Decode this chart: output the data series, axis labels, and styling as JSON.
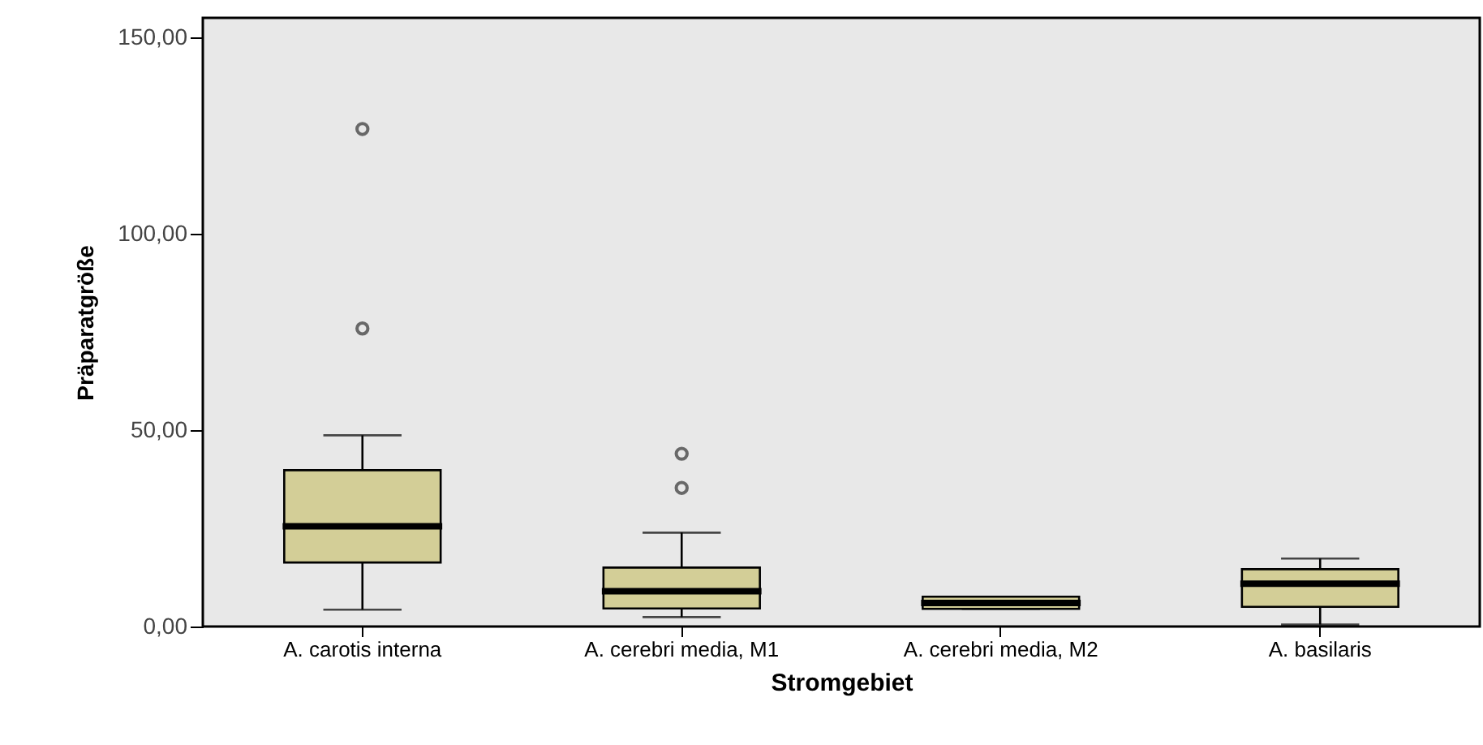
{
  "chart_data": {
    "type": "box",
    "xlabel": "Stromgebiet",
    "ylabel": "Präparatgröße",
    "categories": [
      "A. carotis interna",
      "A. cerebri media, M1",
      "A. cerebri media, M2",
      "A. basilaris"
    ],
    "ylim": [
      0,
      155
    ],
    "yticks": [
      {
        "value": 0,
        "label": "0,00"
      },
      {
        "value": 50,
        "label": "50,00"
      },
      {
        "value": 100,
        "label": "100,00"
      },
      {
        "value": 150,
        "label": "150,00"
      }
    ],
    "series": [
      {
        "color": "#d3ce97",
        "boxes": [
          {
            "low": 4.3,
            "q1": 16.3,
            "median": 25.5,
            "q3": 39.8,
            "high": 48.7,
            "outliers": [
              75.9,
              126.7
            ]
          },
          {
            "low": 2.4,
            "q1": 4.6,
            "median": 9.0,
            "q3": 15.0,
            "high": 23.9,
            "outliers": [
              35.3,
              44.0
            ]
          },
          {
            "low": 4.5,
            "q1": 4.5,
            "median": 6.0,
            "q3": 7.6,
            "high": 7.6
          },
          {
            "low": 0.5,
            "q1": 5.0,
            "median": 10.9,
            "q3": 14.6,
            "high": 17.3
          }
        ]
      }
    ]
  }
}
